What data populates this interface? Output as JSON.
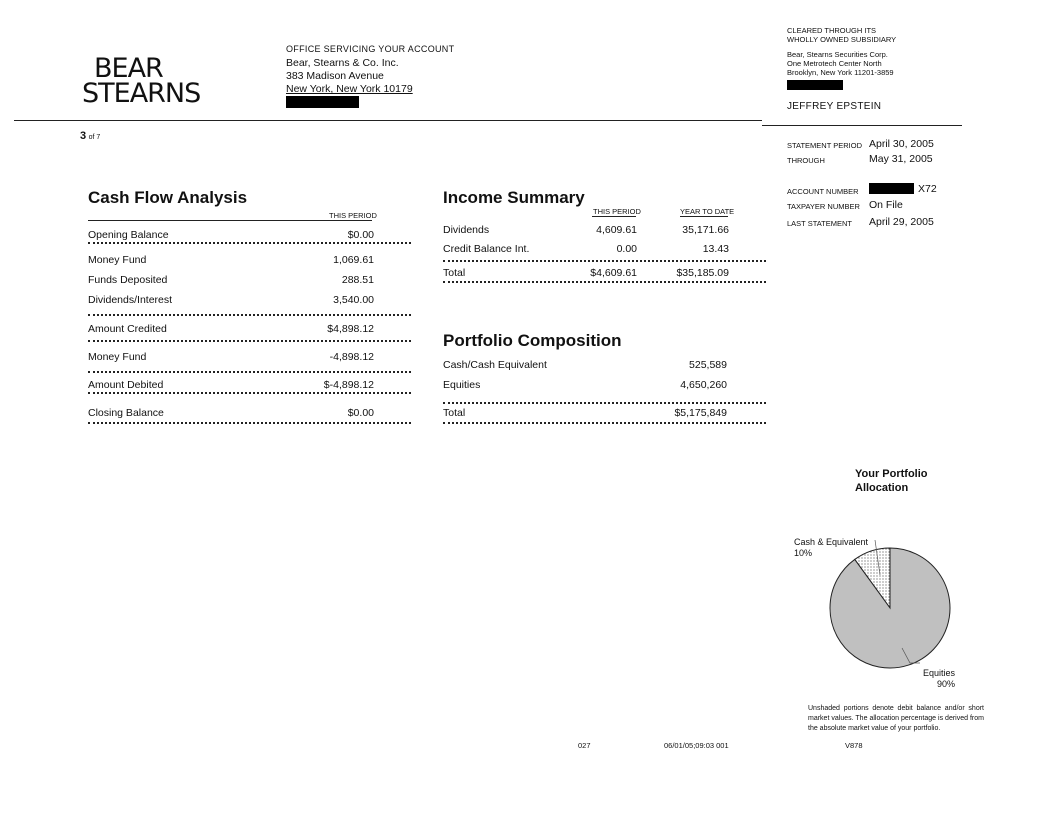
{
  "logo": {
    "line1": "BEAR",
    "line2": "STEARNS"
  },
  "office": {
    "label": "OFFICE SERVICING YOUR ACCOUNT",
    "name": "Bear, Stearns & Co. Inc.",
    "street": "383 Madison Avenue",
    "city": "New York, New York  10179"
  },
  "clearing": {
    "line1": "CLEARED THROUGH ITS",
    "line2": "WHOLLY OWNED SUBSIDIARY",
    "name": "Bear, Stearns Securities Corp.",
    "street": "One Metrotech Center North",
    "city": "Brooklyn,  New York 11201-3859"
  },
  "client": "JEFFREY EPSTEIN",
  "page": {
    "current": "3",
    "of": "of 7"
  },
  "statement": {
    "period_label": "STATEMENT PERIOD",
    "period": "April 30, 2005",
    "through_label": "THROUGH",
    "through": "May 31, 2005",
    "account_label": "ACCOUNT NUMBER",
    "account_suffix": "X72",
    "taxpayer_label": "TAXPAYER NUMBER",
    "taxpayer": "On File",
    "last_label": "LAST STATEMENT",
    "last": "April 29, 2005"
  },
  "cash_flow": {
    "title": "Cash Flow Analysis",
    "col": "THIS PERIOD",
    "rows": [
      {
        "label": "Opening Balance",
        "value": "$0.00"
      },
      {
        "label": "Money Fund",
        "value": "1,069.61"
      },
      {
        "label": "Funds Deposited",
        "value": "288.51"
      },
      {
        "label": "Dividends/Interest",
        "value": "3,540.00"
      },
      {
        "label": "Amount Credited",
        "value": "$4,898.12"
      },
      {
        "label": "Money Fund",
        "value": "-4,898.12"
      },
      {
        "label": "Amount Debited",
        "value": "$-4,898.12"
      },
      {
        "label": "Closing Balance",
        "value": "$0.00"
      }
    ]
  },
  "income": {
    "title": "Income Summary",
    "col1": "THIS PERIOD",
    "col2": "YEAR TO DATE",
    "rows": [
      {
        "label": "Dividends",
        "v1": "4,609.61",
        "v2": "35,171.66"
      },
      {
        "label": "Credit Balance Int.",
        "v1": "0.00",
        "v2": "13.43"
      },
      {
        "label": "Total",
        "v1": "$4,609.61",
        "v2": "$35,185.09"
      }
    ]
  },
  "portfolio": {
    "title": "Portfolio Composition",
    "rows": [
      {
        "label": "Cash/Cash Equivalent",
        "value": "525,589"
      },
      {
        "label": "Equities",
        "value": "4,650,260"
      },
      {
        "label": "Total",
        "value": "$5,175,849"
      }
    ]
  },
  "allocation": {
    "title1": "Your Portfolio",
    "title2": "Allocation",
    "note": "Unshaded portions denote debit balance and/or short market values.  The allocation percentage is derived from the absolute market value of your portfolio.",
    "chart_data": {
      "type": "pie",
      "slices": [
        {
          "label": "Cash & Equivalent",
          "pct": "10%",
          "value": 10,
          "fill": "#ffffff"
        },
        {
          "label": "Equities",
          "pct": "90%",
          "value": 90,
          "fill": "#c0c0c0"
        }
      ]
    }
  },
  "footer": {
    "code1": "027",
    "stamp": "06/01/05;09:03  001",
    "code2": "V878"
  }
}
